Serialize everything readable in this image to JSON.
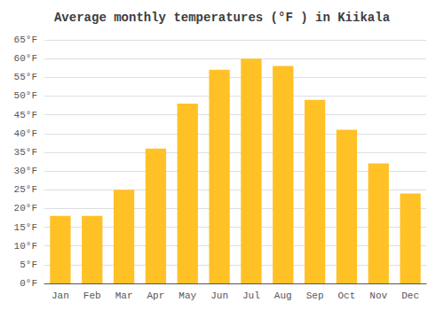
{
  "chart_data": {
    "type": "bar",
    "title": "Average monthly temperatures (°F ) in Kiikala",
    "categories": [
      "Jan",
      "Feb",
      "Mar",
      "Apr",
      "May",
      "Jun",
      "Jul",
      "Aug",
      "Sep",
      "Oct",
      "Nov",
      "Dec"
    ],
    "values": [
      18,
      18,
      25,
      36,
      48,
      57,
      60,
      58,
      49,
      41,
      32,
      24
    ],
    "color": "#FFC125",
    "ylim": [
      0,
      65
    ],
    "yticks": [
      {
        "value": 0,
        "label": "0°F"
      },
      {
        "value": 5,
        "label": "5°F"
      },
      {
        "value": 10,
        "label": "10°F"
      },
      {
        "value": 15,
        "label": "15°F"
      },
      {
        "value": 20,
        "label": "20°F"
      },
      {
        "value": 25,
        "label": "25°F"
      },
      {
        "value": 30,
        "label": "30°F"
      },
      {
        "value": 35,
        "label": "35°F"
      },
      {
        "value": 40,
        "label": "40°F"
      },
      {
        "value": 45,
        "label": "45°F"
      },
      {
        "value": 50,
        "label": "50°F"
      },
      {
        "value": 55,
        "label": "55°F"
      },
      {
        "value": 60,
        "label": "60°F"
      },
      {
        "value": 65,
        "label": "65°F"
      }
    ],
    "grid": true
  }
}
